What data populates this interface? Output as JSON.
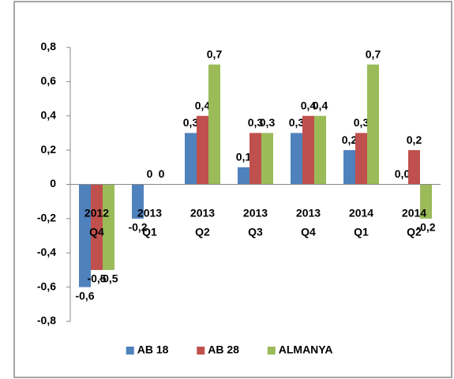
{
  "chart_data": {
    "type": "bar",
    "categories": [
      "2012 Q4",
      "2013 Q1",
      "2013 Q2",
      "2013 Q3",
      "2013 Q4",
      "2014 Q1",
      "2014 Q2"
    ],
    "series": [
      {
        "name": "AB 18",
        "color": "#4f81bd",
        "values": [
          -0.6,
          -0.2,
          0.3,
          0.1,
          0.3,
          0.2,
          0.0
        ],
        "value_labels": [
          "-0,6",
          "-0,2",
          "0,3",
          "0,1",
          "0,3",
          "0,2",
          "0,0"
        ]
      },
      {
        "name": "AB 28",
        "color": "#c0504d",
        "values": [
          -0.5,
          0,
          0.4,
          0.3,
          0.4,
          0.3,
          0.2
        ],
        "value_labels": [
          "-0,5",
          "0",
          "0,4",
          "0,3",
          "0,4",
          "0,3",
          "0,2"
        ]
      },
      {
        "name": "ALMANYA",
        "color": "#9bbb59",
        "values": [
          -0.5,
          0,
          0.7,
          0.3,
          0.4,
          0.7,
          -0.2
        ],
        "value_labels": [
          "-0,5",
          "0",
          "0,7",
          "0,3",
          "0,4",
          "0,7",
          "-0,2"
        ]
      }
    ],
    "ylim": [
      -0.8,
      0.8
    ],
    "yticks": [
      {
        "value": -0.8,
        "label": "-0,8"
      },
      {
        "value": -0.6,
        "label": "-0,6"
      },
      {
        "value": -0.4,
        "label": "-0,4"
      },
      {
        "value": -0.2,
        "label": "-0,2"
      },
      0,
      {
        "value": 0.2,
        "label": "0,2"
      },
      {
        "value": 0.4,
        "label": "0,4"
      },
      {
        "value": 0.6,
        "label": "0,6"
      },
      {
        "value": 0.8,
        "label": "0,8"
      }
    ],
    "legend": "bottom"
  }
}
